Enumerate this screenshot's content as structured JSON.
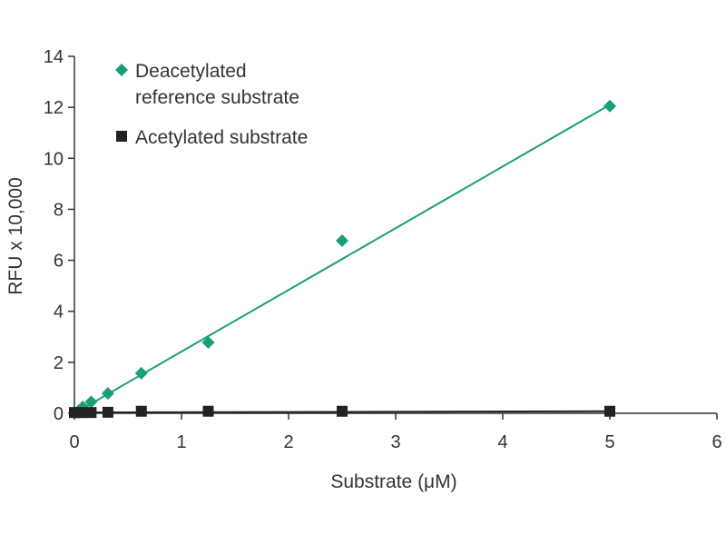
{
  "chart_data": {
    "type": "scatter",
    "title": "",
    "xlabel": "Substrate (μM)",
    "ylabel": "RFU x 10,000",
    "xlim": [
      0,
      6
    ],
    "ylim": [
      0,
      14
    ],
    "xticks": [
      "0",
      "1",
      "2",
      "3",
      "4",
      "5",
      "6"
    ],
    "yticks": [
      "0",
      "2",
      "4",
      "6",
      "8",
      "10",
      "12",
      "14"
    ],
    "grid": false,
    "legend_position": "top-left",
    "series": [
      {
        "name": "Deacetylated reference substrate",
        "legend_lines": [
          "Deacetylated",
          "reference substrate"
        ],
        "color": "#1a9e7a",
        "marker": "diamond",
        "trendline": true,
        "x": [
          0,
          0.039,
          0.078,
          0.156,
          0.3125,
          0.625,
          1.25,
          2.5,
          5
        ],
        "y": [
          0,
          0.1,
          0.25,
          0.45,
          0.78,
          1.57,
          2.78,
          6.77,
          12.05
        ],
        "fit": {
          "slope": 2.42,
          "intercept": 0
        }
      },
      {
        "name": "Acetylated substrate",
        "legend_lines": [
          "Acetylated substrate"
        ],
        "color": "#222222",
        "marker": "square",
        "trendline": true,
        "x": [
          0,
          0.039,
          0.078,
          0.156,
          0.3125,
          0.625,
          1.25,
          2.5,
          5
        ],
        "y": [
          0.03,
          0.03,
          0.03,
          0.03,
          0.04,
          0.08,
          0.08,
          0.08,
          0.08
        ],
        "fit": {
          "slope": 0.01,
          "intercept": 0.03
        }
      }
    ]
  }
}
